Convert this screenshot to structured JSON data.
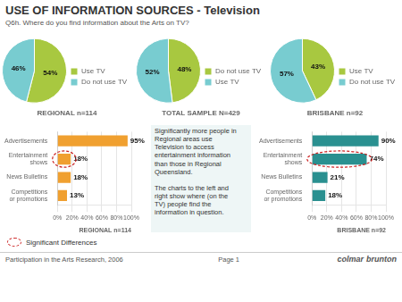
{
  "title": "USE OF INFORMATION SOURCES - Television",
  "subtitle": "Q6h. Where do you find information about the Arts on TV?",
  "chart_data": [
    {
      "type": "pie",
      "title": "REGIONAL n=114",
      "categories": [
        "Use TV",
        "Do not use TV"
      ],
      "values": [
        54,
        46
      ],
      "value_labels": [
        "54%",
        "46%"
      ],
      "colors": [
        "#a8c840",
        "#78ccd0"
      ],
      "data_labels": true,
      "legend": "right"
    },
    {
      "type": "pie",
      "title": "TOTAL SAMPLE N=429",
      "categories": [
        "Do not use TV",
        "Use TV"
      ],
      "values": [
        48,
        52
      ],
      "value_labels": [
        "48%",
        "52%"
      ],
      "colors": [
        "#a8c840",
        "#78ccd0"
      ],
      "data_labels": true,
      "legend": "right"
    },
    {
      "type": "pie",
      "title": "BRISBANE n=92",
      "categories": [
        "Use TV",
        "Do not use TV"
      ],
      "values": [
        43,
        57
      ],
      "value_labels": [
        "43%",
        "57%"
      ],
      "colors": [
        "#a8c840",
        "#78ccd0"
      ],
      "data_labels": true,
      "legend": "right"
    },
    {
      "type": "bar",
      "orientation": "horizontal",
      "title": "REGIONAL n=114",
      "categories": [
        "Advertisements",
        "Entertainment\nshows",
        "News Bulletins",
        "Competitions\nor promotions"
      ],
      "values": [
        95,
        18,
        18,
        13
      ],
      "value_labels": [
        "95%",
        "18%",
        "18%",
        "13%"
      ],
      "color": "#f0a030",
      "xlim": [
        0,
        100
      ],
      "xticks": [
        {
          "value": 0,
          "label": "0%"
        },
        {
          "value": 20,
          "label": "20%"
        },
        {
          "value": 40,
          "label": "40%"
        },
        {
          "value": 60,
          "label": "60%"
        },
        {
          "value": 80,
          "label": "80%"
        },
        {
          "value": 100,
          "label": "100%"
        }
      ],
      "grid": true,
      "data_labels": true
    },
    {
      "type": "bar",
      "orientation": "horizontal",
      "title": "BRISBANE n=92",
      "categories": [
        "Advertisements",
        "Entertainment\nshows",
        "News Bulletins",
        "Competitions\nor promotions"
      ],
      "values": [
        90,
        74,
        21,
        18
      ],
      "value_labels": [
        "90%",
        "74%",
        "21%",
        "18%"
      ],
      "color": "#2a9090",
      "xlim": [
        0,
        100
      ],
      "xticks": [
        {
          "value": 0,
          "label": "0%"
        },
        {
          "value": 20,
          "label": "20%"
        },
        {
          "value": 40,
          "label": "40%"
        },
        {
          "value": 60,
          "label": "60%"
        },
        {
          "value": 80,
          "label": "80%"
        },
        {
          "value": 100,
          "label": "100%"
        }
      ],
      "grid": true,
      "data_labels": true
    }
  ],
  "annotations": [
    {
      "text": "Significantly more people in\nRegional areas use\nTelevision to access\nentertainment information\nthan those in Regional\nQueensland.\n\nThe charts to the left and\nright show where (on the\nTV) people find the\ninformation in question."
    },
    {
      "text": "Significant Differences",
      "color": "#cc2222",
      "categories": [
        "Entertainment\nshows"
      ]
    },
    {
      "text": "Participation in the Arts Research, 2006"
    },
    {
      "text": "Page 1"
    },
    {
      "text": "colmar"
    },
    {
      "text": "brunton"
    }
  ]
}
